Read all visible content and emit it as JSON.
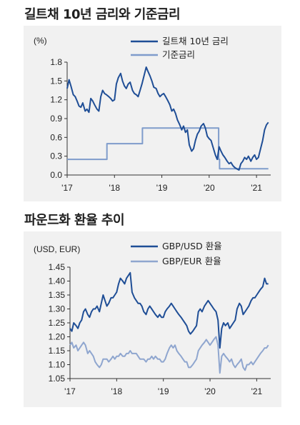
{
  "chart_data": [
    {
      "type": "line",
      "title": "길트채 10년 금리와 기준금리",
      "unit_label": "(%)",
      "x_ticks": [
        "'17",
        "'18",
        "'19",
        "'20",
        "'21"
      ],
      "x_range": [
        2017.0,
        2021.3
      ],
      "ylim": [
        0.0,
        1.8
      ],
      "y_ticks": [
        "0.0",
        "0.3",
        "0.6",
        "0.9",
        "1.2",
        "1.5",
        "1.8"
      ],
      "y_tick_values": [
        0.0,
        0.3,
        0.6,
        0.9,
        1.2,
        1.5,
        1.8
      ],
      "legend_position": "top-right",
      "series": [
        {
          "name": "길트채 10년 금리",
          "color": "#1f4e96",
          "x": [
            2017.0,
            2017.04,
            2017.08,
            2017.13,
            2017.17,
            2017.21,
            2017.25,
            2017.29,
            2017.33,
            2017.38,
            2017.42,
            2017.46,
            2017.5,
            2017.54,
            2017.58,
            2017.63,
            2017.67,
            2017.71,
            2017.75,
            2017.79,
            2017.83,
            2017.88,
            2017.92,
            2017.96,
            2018.0,
            2018.04,
            2018.08,
            2018.13,
            2018.17,
            2018.21,
            2018.25,
            2018.29,
            2018.33,
            2018.38,
            2018.42,
            2018.46,
            2018.5,
            2018.54,
            2018.58,
            2018.63,
            2018.67,
            2018.71,
            2018.75,
            2018.79,
            2018.83,
            2018.88,
            2018.92,
            2018.96,
            2019.0,
            2019.04,
            2019.08,
            2019.13,
            2019.17,
            2019.21,
            2019.25,
            2019.29,
            2019.33,
            2019.38,
            2019.42,
            2019.46,
            2019.5,
            2019.54,
            2019.58,
            2019.63,
            2019.67,
            2019.71,
            2019.75,
            2019.79,
            2019.83,
            2019.88,
            2019.92,
            2019.96,
            2020.0,
            2020.04,
            2020.08,
            2020.13,
            2020.17,
            2020.21,
            2020.25,
            2020.29,
            2020.33,
            2020.38,
            2020.42,
            2020.46,
            2020.5,
            2020.54,
            2020.58,
            2020.63,
            2020.67,
            2020.71,
            2020.75,
            2020.79,
            2020.83,
            2020.88,
            2020.92,
            2020.96,
            2021.0,
            2021.04,
            2021.08,
            2021.13,
            2021.17,
            2021.21,
            2021.25
          ],
          "values": [
            1.38,
            1.52,
            1.42,
            1.28,
            1.25,
            1.18,
            1.1,
            1.08,
            1.15,
            1.02,
            1.05,
            1.0,
            1.22,
            1.18,
            1.12,
            1.05,
            1.02,
            1.25,
            1.35,
            1.3,
            1.28,
            1.25,
            1.22,
            1.18,
            1.2,
            1.45,
            1.55,
            1.62,
            1.5,
            1.42,
            1.38,
            1.45,
            1.48,
            1.35,
            1.3,
            1.28,
            1.25,
            1.35,
            1.45,
            1.6,
            1.72,
            1.65,
            1.58,
            1.5,
            1.4,
            1.38,
            1.3,
            1.25,
            1.28,
            1.3,
            1.25,
            1.18,
            1.12,
            1.02,
            1.05,
            0.98,
            0.88,
            0.8,
            0.72,
            0.78,
            0.68,
            0.72,
            0.48,
            0.38,
            0.42,
            0.55,
            0.65,
            0.7,
            0.78,
            0.82,
            0.75,
            0.62,
            0.58,
            0.55,
            0.45,
            0.32,
            0.25,
            0.45,
            0.38,
            0.32,
            0.28,
            0.22,
            0.18,
            0.2,
            0.15,
            0.12,
            0.1,
            0.08,
            0.18,
            0.22,
            0.28,
            0.25,
            0.3,
            0.22,
            0.28,
            0.32,
            0.25,
            0.28,
            0.4,
            0.55,
            0.72,
            0.8,
            0.84
          ]
        },
        {
          "name": "기준금리",
          "color": "#7f9ccb",
          "x": [
            2017.0,
            2017.84,
            2017.84,
            2018.59,
            2018.59,
            2020.2,
            2020.2,
            2020.22,
            2020.22,
            2021.25
          ],
          "values": [
            0.25,
            0.25,
            0.5,
            0.5,
            0.75,
            0.75,
            0.25,
            0.25,
            0.1,
            0.1
          ]
        }
      ]
    },
    {
      "type": "line",
      "title": "파운드화 환율 추이",
      "unit_label": "(USD, EUR)",
      "x_ticks": [
        "'17",
        "'18",
        "'19",
        "'20",
        "'21"
      ],
      "x_range": [
        2017.0,
        2021.3
      ],
      "ylim": [
        1.05,
        1.45
      ],
      "y_ticks": [
        "1.05",
        "1.10",
        "1.15",
        "1.20",
        "1.25",
        "1.30",
        "1.35",
        "1.40",
        "1.45"
      ],
      "y_tick_values": [
        1.05,
        1.1,
        1.15,
        1.2,
        1.25,
        1.3,
        1.35,
        1.4,
        1.45
      ],
      "legend_position": "top-right",
      "series": [
        {
          "name": "GBP/USD 환율",
          "color": "#1f4e96",
          "x": [
            2017.0,
            2017.04,
            2017.08,
            2017.13,
            2017.17,
            2017.21,
            2017.25,
            2017.29,
            2017.33,
            2017.38,
            2017.42,
            2017.46,
            2017.5,
            2017.54,
            2017.58,
            2017.63,
            2017.67,
            2017.71,
            2017.75,
            2017.79,
            2017.83,
            2017.88,
            2017.92,
            2017.96,
            2018.0,
            2018.04,
            2018.08,
            2018.13,
            2018.17,
            2018.21,
            2018.25,
            2018.29,
            2018.33,
            2018.38,
            2018.42,
            2018.46,
            2018.5,
            2018.54,
            2018.58,
            2018.63,
            2018.67,
            2018.71,
            2018.75,
            2018.79,
            2018.83,
            2018.88,
            2018.92,
            2018.96,
            2019.0,
            2019.04,
            2019.08,
            2019.13,
            2019.17,
            2019.21,
            2019.25,
            2019.29,
            2019.33,
            2019.38,
            2019.42,
            2019.46,
            2019.5,
            2019.54,
            2019.58,
            2019.63,
            2019.67,
            2019.71,
            2019.75,
            2019.79,
            2019.83,
            2019.88,
            2019.92,
            2019.96,
            2020.0,
            2020.04,
            2020.08,
            2020.13,
            2020.17,
            2020.21,
            2020.25,
            2020.29,
            2020.33,
            2020.38,
            2020.42,
            2020.46,
            2020.5,
            2020.54,
            2020.58,
            2020.63,
            2020.67,
            2020.71,
            2020.75,
            2020.79,
            2020.83,
            2020.88,
            2020.92,
            2020.96,
            2021.0,
            2021.04,
            2021.08,
            2021.13,
            2021.17,
            2021.21,
            2021.25
          ],
          "values": [
            1.23,
            1.22,
            1.25,
            1.24,
            1.23,
            1.25,
            1.26,
            1.29,
            1.3,
            1.28,
            1.27,
            1.29,
            1.3,
            1.3,
            1.31,
            1.29,
            1.32,
            1.35,
            1.33,
            1.31,
            1.32,
            1.34,
            1.34,
            1.35,
            1.36,
            1.39,
            1.41,
            1.4,
            1.39,
            1.41,
            1.42,
            1.43,
            1.36,
            1.34,
            1.33,
            1.32,
            1.32,
            1.31,
            1.29,
            1.28,
            1.3,
            1.31,
            1.3,
            1.29,
            1.28,
            1.27,
            1.28,
            1.27,
            1.27,
            1.29,
            1.3,
            1.31,
            1.32,
            1.31,
            1.3,
            1.29,
            1.28,
            1.27,
            1.26,
            1.25,
            1.24,
            1.22,
            1.21,
            1.22,
            1.23,
            1.24,
            1.29,
            1.3,
            1.29,
            1.31,
            1.32,
            1.33,
            1.32,
            1.31,
            1.3,
            1.29,
            1.26,
            1.16,
            1.23,
            1.25,
            1.24,
            1.25,
            1.23,
            1.24,
            1.25,
            1.26,
            1.3,
            1.32,
            1.31,
            1.28,
            1.29,
            1.3,
            1.31,
            1.33,
            1.34,
            1.34,
            1.35,
            1.36,
            1.37,
            1.38,
            1.41,
            1.39,
            1.39
          ]
        },
        {
          "name": "GBP/EUR 환율",
          "color": "#8fa6cf",
          "x": [
            2017.0,
            2017.04,
            2017.08,
            2017.13,
            2017.17,
            2017.21,
            2017.25,
            2017.29,
            2017.33,
            2017.38,
            2017.42,
            2017.46,
            2017.5,
            2017.54,
            2017.58,
            2017.63,
            2017.67,
            2017.71,
            2017.75,
            2017.79,
            2017.83,
            2017.88,
            2017.92,
            2017.96,
            2018.0,
            2018.04,
            2018.08,
            2018.13,
            2018.17,
            2018.21,
            2018.25,
            2018.29,
            2018.33,
            2018.38,
            2018.42,
            2018.46,
            2018.5,
            2018.54,
            2018.58,
            2018.63,
            2018.67,
            2018.71,
            2018.75,
            2018.79,
            2018.83,
            2018.88,
            2018.92,
            2018.96,
            2019.0,
            2019.04,
            2019.08,
            2019.13,
            2019.17,
            2019.21,
            2019.25,
            2019.29,
            2019.33,
            2019.38,
            2019.42,
            2019.46,
            2019.5,
            2019.54,
            2019.58,
            2019.63,
            2019.67,
            2019.71,
            2019.75,
            2019.79,
            2019.83,
            2019.88,
            2019.92,
            2019.96,
            2020.0,
            2020.04,
            2020.08,
            2020.13,
            2020.17,
            2020.21,
            2020.25,
            2020.29,
            2020.33,
            2020.38,
            2020.42,
            2020.46,
            2020.5,
            2020.54,
            2020.58,
            2020.63,
            2020.67,
            2020.71,
            2020.75,
            2020.79,
            2020.83,
            2020.88,
            2020.92,
            2020.96,
            2021.0,
            2021.04,
            2021.08,
            2021.13,
            2021.17,
            2021.21,
            2021.25
          ],
          "values": [
            1.17,
            1.18,
            1.16,
            1.17,
            1.15,
            1.16,
            1.17,
            1.18,
            1.17,
            1.14,
            1.15,
            1.14,
            1.13,
            1.11,
            1.1,
            1.09,
            1.1,
            1.12,
            1.12,
            1.12,
            1.11,
            1.12,
            1.13,
            1.12,
            1.13,
            1.13,
            1.14,
            1.13,
            1.13,
            1.14,
            1.14,
            1.15,
            1.14,
            1.14,
            1.14,
            1.13,
            1.12,
            1.12,
            1.12,
            1.11,
            1.12,
            1.12,
            1.13,
            1.12,
            1.13,
            1.12,
            1.12,
            1.11,
            1.11,
            1.12,
            1.14,
            1.16,
            1.17,
            1.16,
            1.17,
            1.15,
            1.14,
            1.13,
            1.12,
            1.11,
            1.11,
            1.09,
            1.09,
            1.1,
            1.11,
            1.12,
            1.15,
            1.16,
            1.17,
            1.18,
            1.19,
            1.18,
            1.17,
            1.18,
            1.19,
            1.2,
            1.17,
            1.07,
            1.13,
            1.14,
            1.13,
            1.12,
            1.11,
            1.12,
            1.1,
            1.09,
            1.1,
            1.11,
            1.12,
            1.09,
            1.08,
            1.1,
            1.1,
            1.11,
            1.1,
            1.11,
            1.12,
            1.13,
            1.14,
            1.15,
            1.16,
            1.16,
            1.17
          ]
        }
      ]
    }
  ]
}
